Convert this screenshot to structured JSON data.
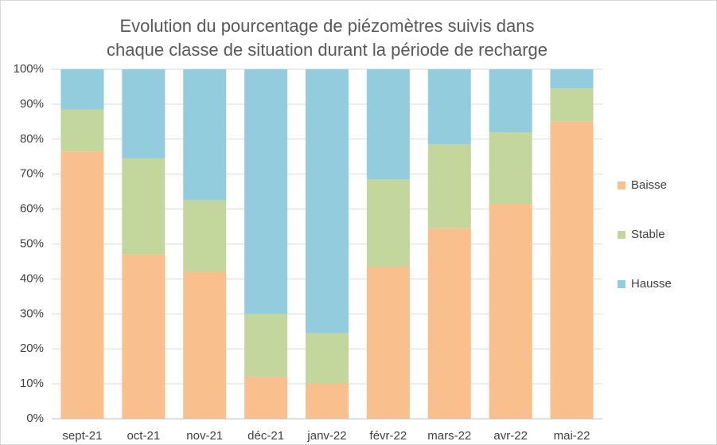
{
  "chart_data": {
    "type": "stacked_bar",
    "title": "Evolution du pourcentage de piézomètres suivis dans chaque classe de situation durant la période de recharge",
    "categories": [
      "sept-21",
      "oct-21",
      "nov-21",
      "déc-21",
      "janv-22",
      "févr-22",
      "mars-22",
      "avr-22",
      "mai-22"
    ],
    "series": [
      {
        "name": "Baisse",
        "color": "#f9bf8c",
        "values": [
          76.5,
          47,
          42,
          12,
          10,
          43.5,
          54.5,
          61.5,
          85
        ]
      },
      {
        "name": "Stable",
        "color": "#c3d69b",
        "values": [
          12,
          27.5,
          20.5,
          18,
          14.5,
          25,
          24,
          20.5,
          9.5
        ]
      },
      {
        "name": "Hausse",
        "color": "#93cddd",
        "values": [
          11.5,
          25.5,
          37.5,
          70,
          75.5,
          31.5,
          21.5,
          18,
          5.5
        ]
      }
    ],
    "ylim": [
      0,
      100
    ],
    "yticks": [
      {
        "value": 0,
        "label": "0%"
      },
      {
        "value": 10,
        "label": "10%"
      },
      {
        "value": 20,
        "label": "20%"
      },
      {
        "value": 30,
        "label": "30%"
      },
      {
        "value": 40,
        "label": "40%"
      },
      {
        "value": 50,
        "label": "50%"
      },
      {
        "value": 60,
        "label": "60%"
      },
      {
        "value": 70,
        "label": "70%"
      },
      {
        "value": 80,
        "label": "80%"
      },
      {
        "value": 90,
        "label": "90%"
      },
      {
        "value": 100,
        "label": "100%"
      }
    ],
    "grid": true,
    "legend": "right"
  }
}
